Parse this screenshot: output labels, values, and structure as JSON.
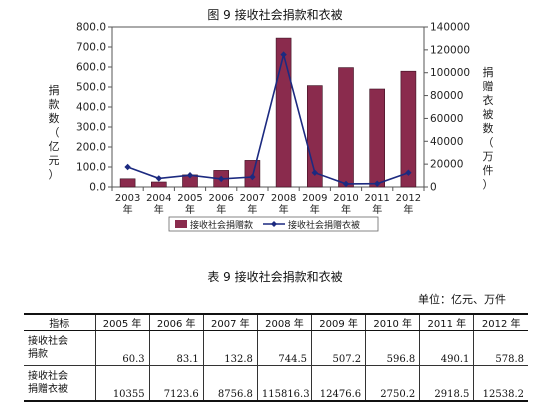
{
  "figure_title": "图 9    接收社会捐款和衣被",
  "chart_data": {
    "type": "bar+line",
    "categories": [
      "2003\n年",
      "2004\n年",
      "2005\n年",
      "2006\n年",
      "2007\n年",
      "2008\n年",
      "2009\n年",
      "2010\n年",
      "2011\n年",
      "2012\n年"
    ],
    "series": [
      {
        "name": "接收社会捐赠款",
        "type": "bar",
        "axis": "left",
        "color": "#8a2b4d",
        "values": [
          41.0,
          25.0,
          60.3,
          83.1,
          132.8,
          744.5,
          507.2,
          596.8,
          490.1,
          578.8
        ]
      },
      {
        "name": "接收社会捐赠衣被",
        "type": "line",
        "axis": "right",
        "color": "#1c2a80",
        "values": [
          17500,
          7500,
          10355,
          7123.6,
          8756.8,
          115816.3,
          12476.6,
          2750.2,
          2918.5,
          12538.2
        ]
      }
    ],
    "left_axis": {
      "label": "捐款数（亿元）",
      "ylim": [
        0,
        800
      ],
      "ticks": [
        "0.0",
        "100.0",
        "200.0",
        "300.0",
        "400.0",
        "500.0",
        "600.0",
        "700.0",
        "800.0"
      ]
    },
    "right_axis": {
      "label": "捐赠衣被数（万件）",
      "ylim": [
        0,
        140000
      ],
      "ticks": [
        "0",
        "20000",
        "40000",
        "60000",
        "80000",
        "100000",
        "120000",
        "140000"
      ]
    },
    "grid": false,
    "legend_position": "bottom"
  },
  "table_title": "表 9     接收社会捐款和衣被",
  "unit_label": "单位：亿元、万件",
  "table": {
    "header": [
      "指标",
      "2005 年",
      "2006 年",
      "2007 年",
      "2008 年",
      "2009 年",
      "2010 年",
      "2011 年",
      "2012 年"
    ],
    "rows": [
      {
        "label_lines": [
          "接收社会",
          "捐款"
        ],
        "values": [
          "60.3",
          "83.1",
          "132.8",
          "744.5",
          "507.2",
          "596.8",
          "490.1",
          "578.8"
        ]
      },
      {
        "label_lines": [
          "接收社会",
          "捐赠衣被"
        ],
        "values": [
          "10355",
          "7123.6",
          "8756.8",
          "115816.3",
          "12476.6",
          "2750.2",
          "2918.5",
          "12538.2"
        ]
      }
    ]
  }
}
